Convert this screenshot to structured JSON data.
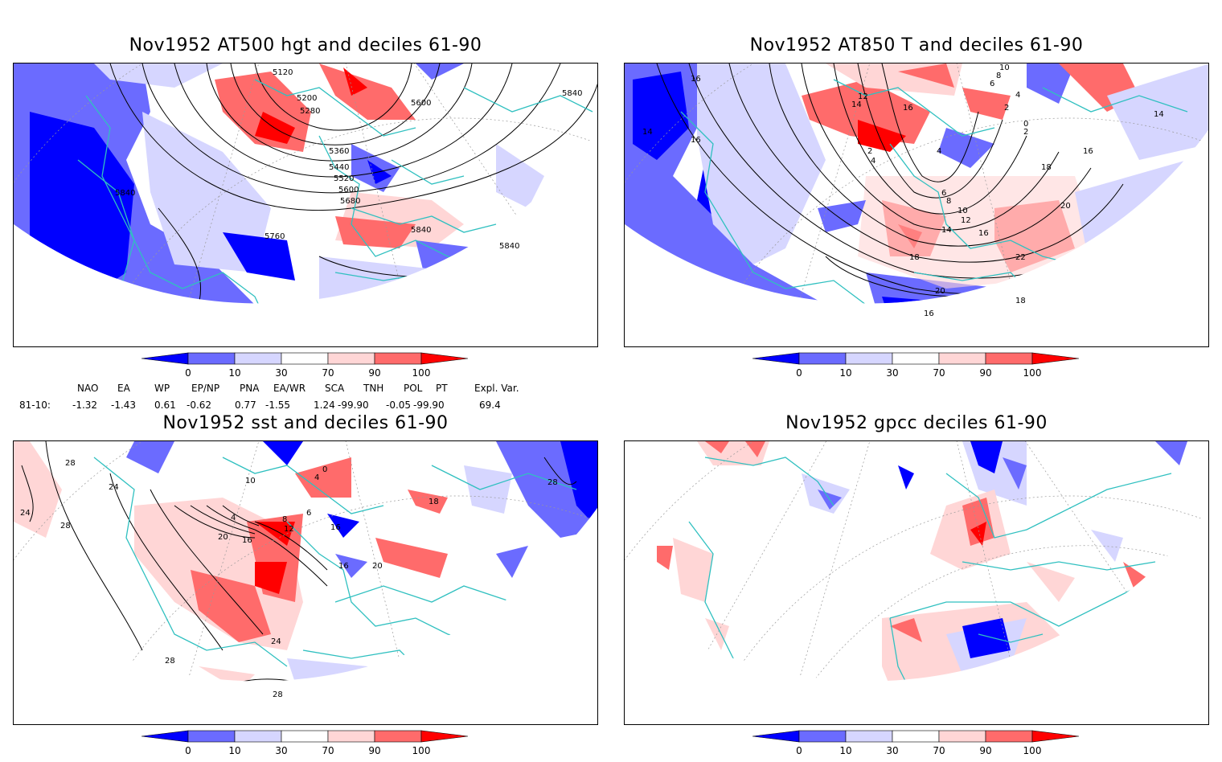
{
  "panels": [
    {
      "title": "Nov1952 AT500 hgt and deciles 61-90",
      "contour_labels": [
        "5120",
        "5200",
        "5280",
        "5360",
        "5440",
        "5520",
        "5600",
        "5680",
        "5760",
        "5840",
        "5840",
        "5840",
        "5600",
        "5840"
      ]
    },
    {
      "title": "Nov1952 AT850 T and deciles 61-90",
      "contour_labels": [
        "16",
        "14",
        "16",
        "14",
        "16",
        "18",
        "20",
        "22",
        "16",
        "18",
        "18",
        "20",
        "16",
        "14",
        "12",
        "10",
        "8",
        "6",
        "4",
        "2",
        "0",
        "2",
        "4",
        "6",
        "8",
        "10",
        "12",
        "14",
        "16",
        "2",
        "4"
      ]
    },
    {
      "title": "Nov1952 sst and deciles 61-90",
      "contour_labels": [
        "28",
        "24",
        "28",
        "24",
        "20",
        "16",
        "12",
        "8",
        "4",
        "0",
        "4",
        "6",
        "16",
        "20",
        "18",
        "16",
        "28",
        "28",
        "24",
        "28",
        "10"
      ]
    },
    {
      "title": "Nov1952 gpcc deciles 61-90",
      "contour_labels": []
    }
  ],
  "colorbar": {
    "tick_labels": [
      "0",
      "10",
      "30",
      "70",
      "90",
      "100"
    ],
    "colors": [
      "#0000ff",
      "#6b6bff",
      "#d6d6ff",
      "#ffffff",
      "#ffd6d6",
      "#ff6b6b",
      "#ff0000"
    ]
  },
  "indices": {
    "headers": [
      "NAO",
      "EA",
      "WP",
      "EP/NP",
      "PNA",
      "EA/WR",
      "SCA",
      "TNH",
      "POL",
      "PT",
      "Expl. Var."
    ],
    "row_label": "81-10:",
    "values": [
      "-1.32",
      "-1.43",
      "0.61",
      "-0.62",
      "0.77",
      "-1.55",
      "1.24",
      "-99.90",
      "-0.05",
      "-99.90",
      "69.4"
    ]
  }
}
